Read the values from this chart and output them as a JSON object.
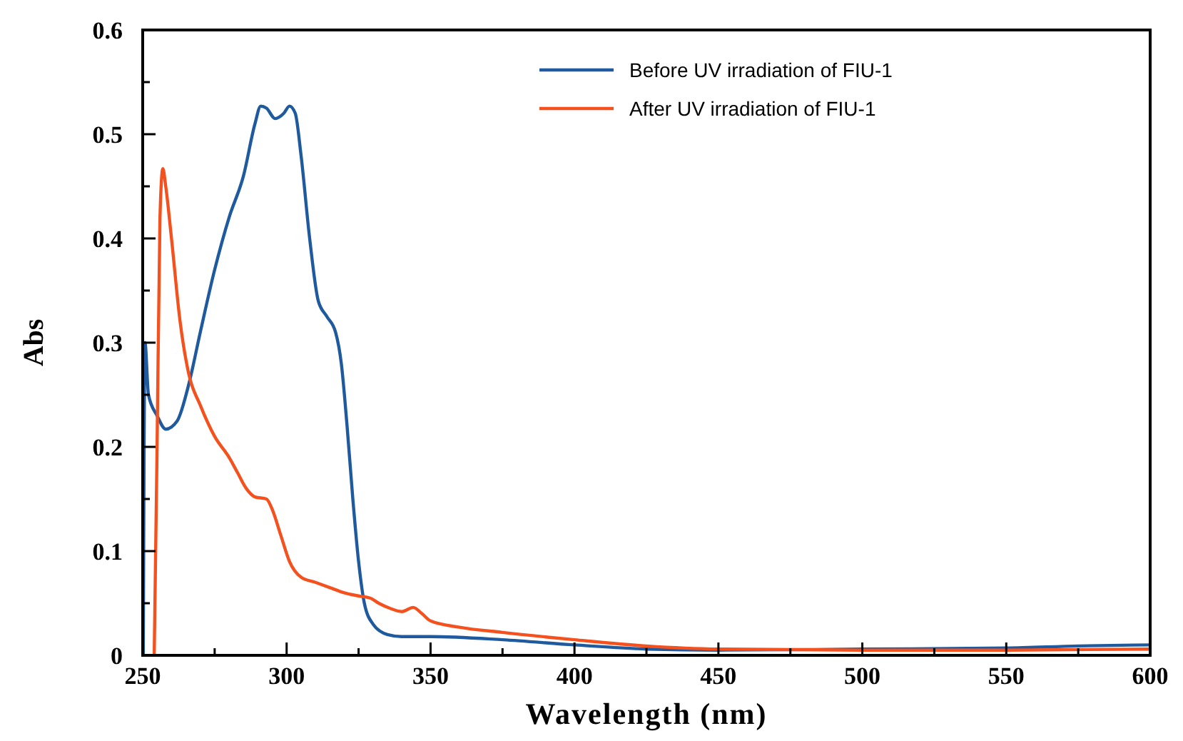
{
  "chart_data": {
    "type": "line",
    "xlabel": "Wavelength (nm)",
    "ylabel": "Abs",
    "xlim": [
      250,
      600
    ],
    "ylim": [
      0,
      0.6
    ],
    "xticks": [
      250,
      {
        "value": 275,
        "label": null
      },
      300,
      {
        "value": 325,
        "label": null
      },
      350,
      {
        "value": 375,
        "label": null
      },
      400,
      {
        "value": 425,
        "label": null
      },
      450,
      {
        "value": 475,
        "label": null
      },
      500,
      {
        "value": 525,
        "label": null
      },
      550,
      {
        "value": 575,
        "label": null
      },
      600
    ],
    "yticks": [
      0,
      {
        "value": 0.05,
        "label": null
      },
      0.1,
      {
        "value": 0.15,
        "label": null
      },
      0.2,
      {
        "value": 0.25,
        "label": null
      },
      0.3,
      {
        "value": 0.35,
        "label": null
      },
      0.4,
      {
        "value": 0.45,
        "label": null
      },
      0.5,
      {
        "value": 0.55,
        "label": null
      },
      0.6
    ],
    "legend": "top right",
    "grid": false,
    "marker": "none",
    "line_style": "solid",
    "series": [
      {
        "name": "Before UV irradiation of FIU-1",
        "color": "#1f5a9e",
        "x": [
          250.2,
          250.8,
          252,
          255,
          258,
          262,
          266,
          270,
          275,
          280,
          285,
          289,
          291,
          293,
          296,
          299,
          301,
          303,
          305,
          308,
          311,
          314,
          317,
          319,
          321,
          323,
          325,
          327,
          330,
          335,
          340,
          350,
          375,
          400,
          425,
          450,
          500,
          550,
          575,
          600
        ],
        "values": [
          0,
          0.3,
          0.25,
          0.23,
          0.217,
          0.225,
          0.26,
          0.31,
          0.37,
          0.42,
          0.46,
          0.51,
          0.527,
          0.525,
          0.515,
          0.52,
          0.527,
          0.52,
          0.48,
          0.4,
          0.34,
          0.325,
          0.31,
          0.28,
          0.22,
          0.15,
          0.09,
          0.05,
          0.03,
          0.02,
          0.018,
          0.018,
          0.015,
          0.01,
          0.006,
          0.005,
          0.006,
          0.007,
          0.009,
          0.01
        ]
      },
      {
        "name": "After UV irradiation of FIU-1",
        "color": "#f4511e",
        "x": [
          254,
          255,
          256,
          257,
          258,
          260,
          263,
          266,
          270,
          275,
          280,
          283,
          286,
          289,
          293,
          295,
          298,
          301,
          305,
          310,
          315,
          320,
          325,
          329,
          332,
          336,
          340,
          344,
          347,
          350,
          360,
          375,
          400,
          425,
          450,
          500,
          550,
          600
        ],
        "values": [
          0,
          0.2,
          0.42,
          0.467,
          0.45,
          0.4,
          0.32,
          0.27,
          0.24,
          0.21,
          0.19,
          0.175,
          0.16,
          0.152,
          0.15,
          0.14,
          0.115,
          0.09,
          0.075,
          0.07,
          0.065,
          0.06,
          0.057,
          0.055,
          0.05,
          0.045,
          0.042,
          0.046,
          0.04,
          0.033,
          0.027,
          0.022,
          0.015,
          0.009,
          0.006,
          0.005,
          0.005,
          0.006
        ]
      }
    ]
  }
}
